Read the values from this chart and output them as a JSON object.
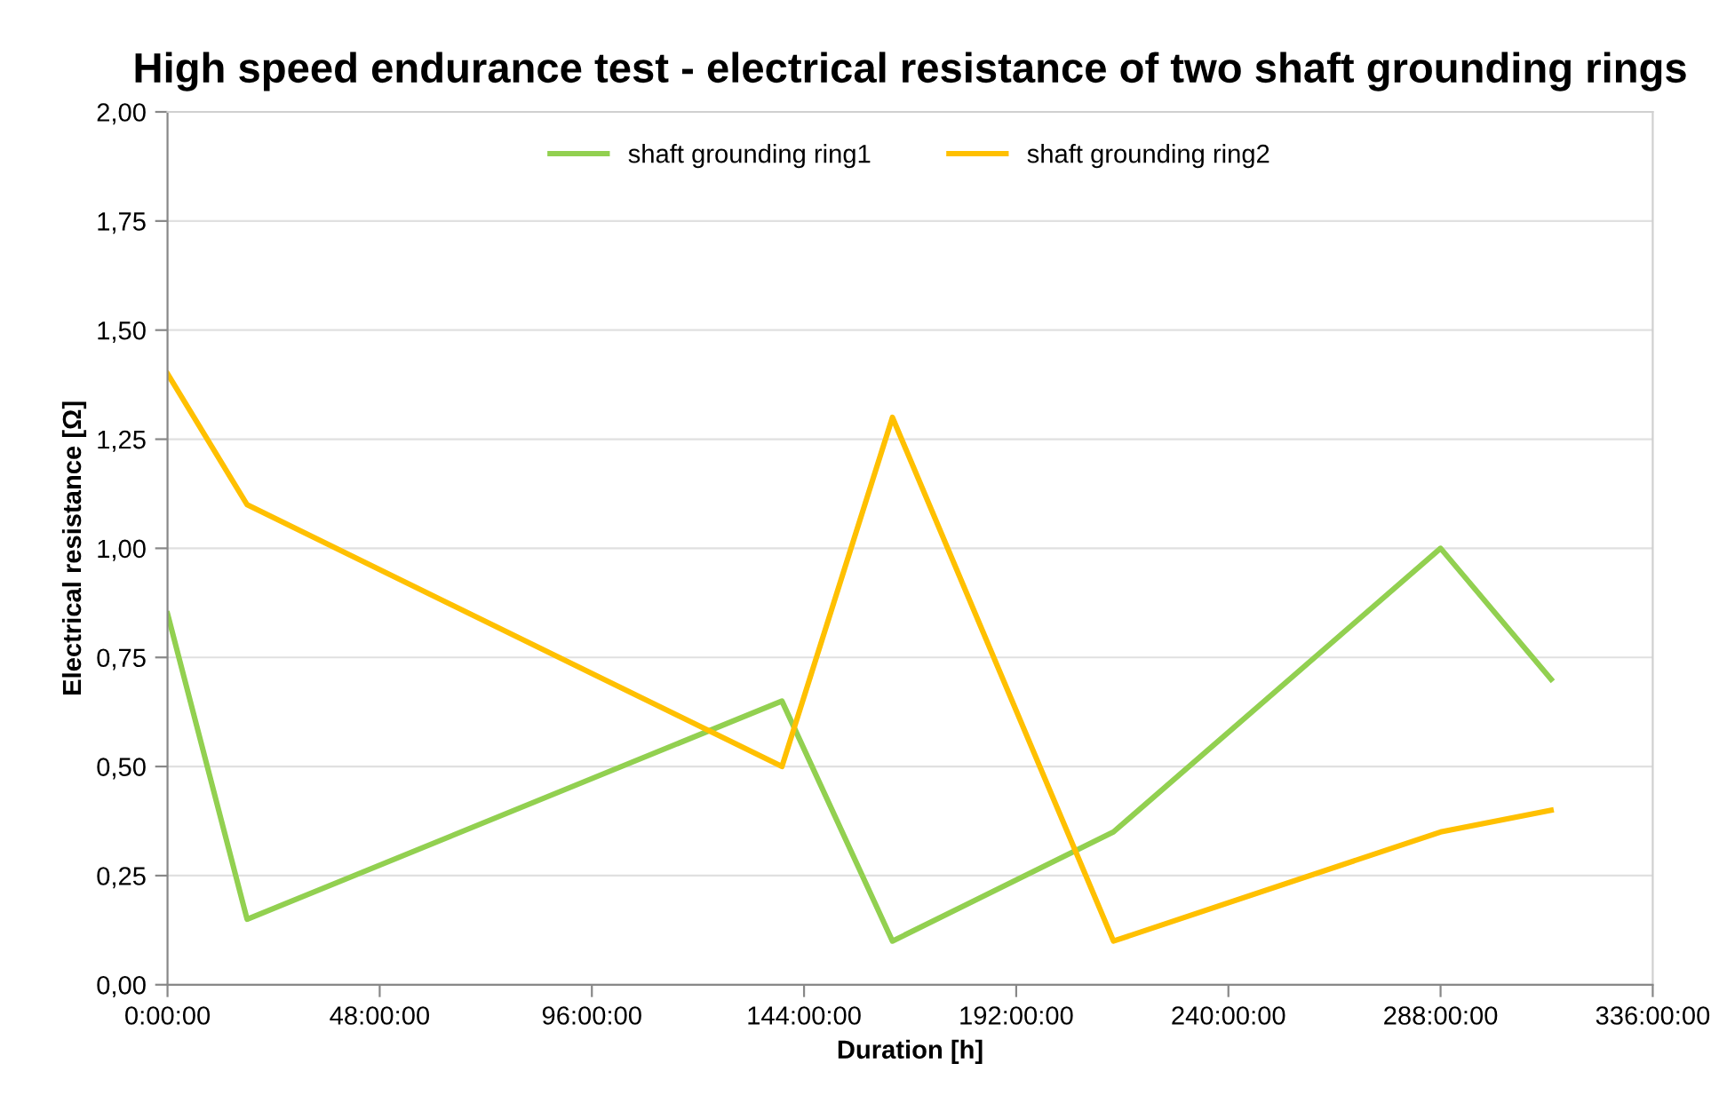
{
  "chart_data": {
    "type": "line",
    "title": "High speed endurance test - electrical resistance of two shaft grounding rings",
    "xlabel": "Duration [h]",
    "ylabel": "Electrical resistance [Ω]",
    "x": [
      0,
      18,
      139,
      164,
      214,
      288,
      313
    ],
    "series": [
      {
        "name": "shaft grounding ring1",
        "color": "#92d050",
        "values": [
          0.85,
          0.15,
          0.65,
          0.1,
          0.35,
          1.0,
          0.7
        ]
      },
      {
        "name": "shaft grounding ring2",
        "color": "#ffc000",
        "values": [
          1.4,
          1.1,
          0.5,
          1.3,
          0.1,
          0.35,
          0.4
        ]
      }
    ],
    "xlim": [
      0,
      336
    ],
    "xticks": [
      {
        "value": 0,
        "label": "0:00:00"
      },
      {
        "value": 48,
        "label": "48:00:00"
      },
      {
        "value": 96,
        "label": "96:00:00"
      },
      {
        "value": 144,
        "label": "144:00:00"
      },
      {
        "value": 192,
        "label": "192:00:00"
      },
      {
        "value": 240,
        "label": "240:00:00"
      },
      {
        "value": 288,
        "label": "288:00:00"
      },
      {
        "value": 336,
        "label": "336:00:00"
      }
    ],
    "ylim": [
      0,
      2
    ],
    "yticks": [
      {
        "value": 0,
        "label": "0,00"
      },
      {
        "value": 0.25,
        "label": "0,25"
      },
      {
        "value": 0.5,
        "label": "0,50"
      },
      {
        "value": 0.75,
        "label": "0,75"
      },
      {
        "value": 1,
        "label": "1,00"
      },
      {
        "value": 1.25,
        "label": "1,25"
      },
      {
        "value": 1.5,
        "label": "1,50"
      },
      {
        "value": 1.75,
        "label": "1,75"
      },
      {
        "value": 2,
        "label": "2,00"
      }
    ],
    "grid": "y",
    "legend": "top",
    "marker": "none",
    "line_style": "solid"
  }
}
